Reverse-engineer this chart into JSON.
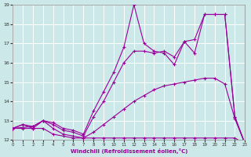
{
  "xlabel": "Windchill (Refroidissement éolien,°C)",
  "bg_color": "#cce8e8",
  "line_color": "#990099",
  "grid_color": "#ffffff",
  "xmin": 0,
  "xmax": 23,
  "ymin": 12,
  "ymax": 19,
  "lines": [
    {
      "x": [
        0,
        1,
        2,
        3,
        4,
        5,
        6,
        7,
        8,
        9,
        10,
        11,
        12,
        13,
        14,
        15,
        16,
        17,
        18,
        19,
        20,
        21,
        22,
        23
      ],
      "y": [
        12.6,
        12.6,
        12.6,
        12.6,
        12.3,
        12.2,
        12.1,
        12.1,
        12.1,
        12.1,
        12.1,
        12.1,
        12.1,
        12.1,
        12.1,
        12.1,
        12.1,
        12.1,
        12.1,
        12.1,
        12.1,
        12.1,
        12.1,
        11.8
      ]
    },
    {
      "x": [
        0,
        1,
        2,
        3,
        4,
        5,
        6,
        7,
        8,
        9,
        10,
        11,
        12,
        13,
        14,
        15,
        16,
        17,
        18,
        19,
        20,
        21,
        22,
        23
      ],
      "y": [
        12.6,
        12.8,
        12.6,
        13.0,
        12.6,
        12.3,
        12.2,
        12.1,
        12.4,
        12.8,
        13.2,
        13.6,
        14.0,
        14.3,
        14.6,
        14.8,
        14.9,
        15.0,
        15.1,
        15.2,
        15.2,
        14.9,
        13.1,
        11.8
      ]
    },
    {
      "x": [
        0,
        1,
        2,
        3,
        4,
        5,
        6,
        7,
        8,
        9,
        10,
        11,
        12,
        13,
        14,
        15,
        16,
        17,
        18,
        19,
        20,
        21,
        22,
        23
      ],
      "y": [
        12.6,
        12.8,
        12.7,
        13.0,
        12.8,
        12.5,
        12.4,
        12.2,
        13.2,
        14.0,
        15.0,
        16.0,
        16.6,
        16.6,
        16.5,
        16.6,
        16.3,
        17.1,
        17.2,
        18.5,
        18.5,
        18.5,
        13.2,
        11.8
      ]
    },
    {
      "x": [
        0,
        2,
        3,
        4,
        5,
        6,
        7,
        8,
        9,
        10,
        11,
        12,
        13,
        14,
        15,
        16,
        17,
        18,
        19,
        20,
        21,
        22,
        23
      ],
      "y": [
        12.6,
        12.7,
        13.0,
        12.9,
        12.6,
        12.5,
        12.3,
        13.5,
        14.5,
        15.5,
        16.8,
        19.0,
        17.0,
        16.6,
        16.5,
        15.9,
        17.1,
        16.5,
        18.5,
        18.5,
        18.5,
        13.2,
        11.8
      ]
    }
  ],
  "yticks": [
    12,
    13,
    14,
    15,
    16,
    17,
    18,
    19
  ],
  "xticks": [
    0,
    1,
    2,
    3,
    4,
    5,
    6,
    7,
    8,
    9,
    10,
    11,
    12,
    13,
    14,
    15,
    16,
    17,
    18,
    19,
    20,
    21,
    22,
    23
  ]
}
